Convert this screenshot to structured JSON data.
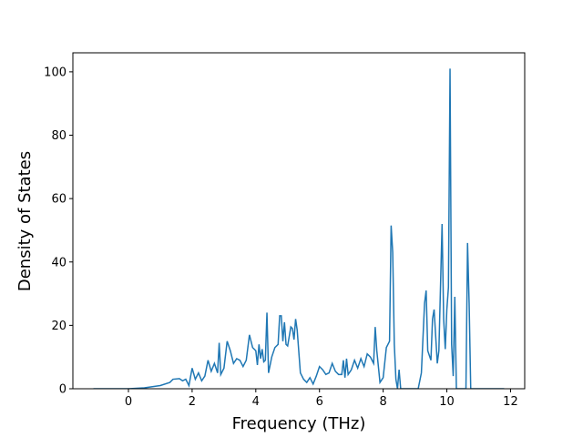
{
  "chart_data": {
    "type": "line",
    "x_label": "Frequency (THz)",
    "y_label": "Density of States",
    "x": [
      -1.1,
      0,
      0.5,
      1,
      1.3,
      1.4,
      1.6,
      1.7,
      1.8,
      1.9,
      2.0,
      2.1,
      2.2,
      2.3,
      2.4,
      2.5,
      2.6,
      2.7,
      2.8,
      2.85,
      2.9,
      3.0,
      3.1,
      3.2,
      3.3,
      3.4,
      3.5,
      3.6,
      3.7,
      3.8,
      3.9,
      4.0,
      4.05,
      4.1,
      4.15,
      4.2,
      4.25,
      4.3,
      4.35,
      4.4,
      4.5,
      4.6,
      4.7,
      4.75,
      4.8,
      4.85,
      4.9,
      4.95,
      5.0,
      5.1,
      5.15,
      5.2,
      5.25,
      5.3,
      5.4,
      5.5,
      5.6,
      5.7,
      5.8,
      5.9,
      6.0,
      6.1,
      6.2,
      6.3,
      6.4,
      6.5,
      6.6,
      6.7,
      6.75,
      6.8,
      6.85,
      6.9,
      7.0,
      7.1,
      7.2,
      7.3,
      7.4,
      7.5,
      7.6,
      7.7,
      7.75,
      7.8,
      7.9,
      8.0,
      8.1,
      8.2,
      8.25,
      8.3,
      8.35,
      8.4,
      8.45,
      8.5,
      8.55,
      8.6,
      9.0,
      9.1,
      9.2,
      9.3,
      9.35,
      9.4,
      9.5,
      9.55,
      9.6,
      9.7,
      9.75,
      9.85,
      9.9,
      9.95,
      10.0,
      10.05,
      10.1,
      10.15,
      10.2,
      10.25,
      10.3,
      10.5,
      10.6,
      10.65,
      10.7,
      10.75,
      11.8
    ],
    "series": [
      {
        "name": "DOS",
        "color": "#1f77b4",
        "values": [
          0,
          0,
          0.3,
          1,
          2,
          3,
          3.2,
          2.5,
          3,
          1,
          6.5,
          3,
          5,
          2.5,
          4,
          9,
          5.5,
          8,
          5,
          14.5,
          4.5,
          6.5,
          15,
          12,
          8,
          9.5,
          9,
          7,
          9,
          17,
          13,
          12,
          7.5,
          14,
          9.5,
          12.5,
          8.5,
          9,
          24,
          5,
          10,
          13,
          14,
          23,
          23,
          15,
          21,
          14,
          13.5,
          19.5,
          19,
          15.5,
          22,
          18.5,
          5,
          3,
          2,
          3.5,
          1.5,
          4,
          7,
          6,
          4.5,
          5,
          8,
          5.5,
          4.5,
          4.5,
          9,
          3.5,
          9.5,
          4.5,
          6,
          9,
          6.5,
          9.5,
          7,
          11,
          10,
          8,
          19.5,
          12,
          2,
          3.5,
          13,
          15,
          51.5,
          43,
          14,
          3,
          0,
          6,
          0,
          0,
          0,
          0,
          5,
          27,
          31,
          12,
          9,
          22,
          25,
          8,
          12,
          52,
          22,
          12.5,
          25,
          32,
          101,
          14,
          4,
          29,
          0,
          0,
          0,
          46,
          27,
          0,
          0
        ]
      }
    ],
    "xlim": [
      -1.745,
      12.445
    ],
    "ylim": [
      0,
      106
    ],
    "xticks": [
      0,
      2,
      4,
      6,
      8,
      10,
      12
    ],
    "yticks": [
      0,
      20,
      40,
      60,
      80,
      100
    ]
  }
}
